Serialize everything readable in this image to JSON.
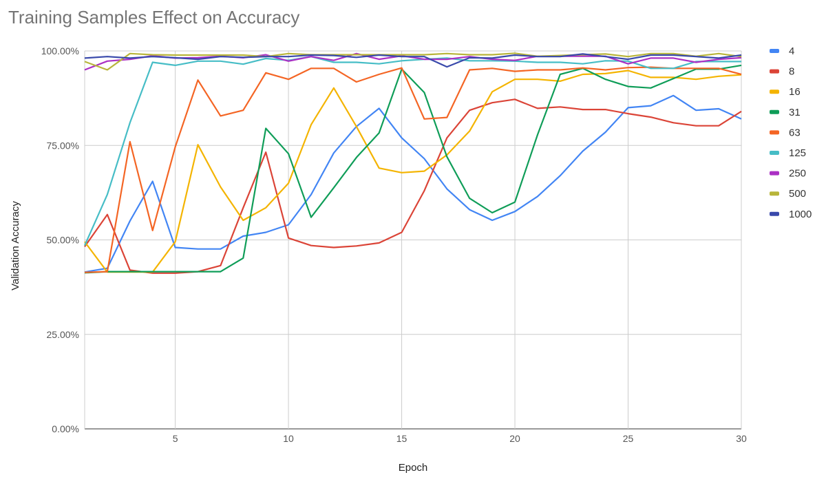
{
  "chart_data": {
    "type": "line",
    "title": "Training Samples Effect on Accuracy",
    "xlabel": "Epoch",
    "ylabel": "Validation Accuracy",
    "xlim": [
      1,
      30
    ],
    "ylim": [
      0,
      100
    ],
    "x_ticks": [
      "5",
      "10",
      "15",
      "20",
      "25",
      "30"
    ],
    "y_ticks": [
      "0.00%",
      "25.00%",
      "50.00%",
      "75.00%",
      "100.00%"
    ],
    "grid": true,
    "legend_position": "right",
    "x": [
      1,
      2,
      3,
      4,
      5,
      6,
      7,
      8,
      9,
      10,
      11,
      12,
      13,
      14,
      15,
      16,
      17,
      18,
      19,
      20,
      21,
      22,
      23,
      24,
      25,
      26,
      27,
      28,
      29,
      30
    ],
    "series": [
      {
        "name": "4",
        "color": "#4285F4",
        "values": [
          41.5,
          42.5,
          55,
          65.5,
          48,
          47.6,
          47.6,
          51,
          52,
          54,
          62,
          73,
          80,
          84.8,
          77,
          71.5,
          63.5,
          58,
          55.2,
          57.5,
          61.5,
          67,
          73.5,
          78.5,
          85,
          85.5,
          88.2,
          84.3,
          84.7,
          82
        ]
      },
      {
        "name": "8",
        "color": "#DB4437",
        "values": [
          48.2,
          56.7,
          42,
          41.2,
          41.2,
          41.6,
          43.2,
          58.5,
          73.2,
          50.5,
          48.5,
          48,
          48.4,
          49.2,
          52,
          63,
          77,
          84.3,
          86.3,
          87.2,
          84.8,
          85.2,
          84.5,
          84.5,
          83.4,
          82.5,
          81,
          80.2,
          80.2,
          84
        ]
      },
      {
        "name": "16",
        "color": "#F4B400",
        "values": [
          49.5,
          41.5,
          41.5,
          41.5,
          49.5,
          75.2,
          64,
          55.2,
          58.5,
          65,
          80.5,
          90.2,
          80,
          69,
          67.8,
          68.2,
          72.5,
          78.8,
          89.2,
          92.5,
          92.5,
          92,
          93.8,
          94,
          94.8,
          93,
          93,
          92.5,
          93.3,
          93.7
        ]
      },
      {
        "name": "31",
        "color": "#0F9D58",
        "values": [
          41.3,
          41.6,
          41.6,
          41.6,
          41.6,
          41.6,
          41.6,
          45.2,
          79.5,
          72.8,
          56,
          63.8,
          71.8,
          78.3,
          95.2,
          89,
          72,
          61,
          57.2,
          60,
          77.8,
          93.8,
          95.4,
          92.5,
          90.6,
          90.2,
          92.7,
          95.2,
          95.2,
          96.2
        ]
      },
      {
        "name": "63",
        "color": "#F46524",
        "values": [
          41.4,
          41.6,
          76,
          52.5,
          74.6,
          92.3,
          82.8,
          84.3,
          94.2,
          92.5,
          95.4,
          95.4,
          91.8,
          93.8,
          95.5,
          82,
          82.4,
          95,
          95.4,
          94.6,
          95,
          95,
          95.5,
          95,
          95.6,
          95.7,
          95.4,
          95.4,
          95.4,
          93.8
        ]
      },
      {
        "name": "125",
        "color": "#46BDC6",
        "values": [
          48.5,
          62,
          81,
          97,
          96.2,
          97.3,
          97.3,
          96.5,
          98,
          97.5,
          98.5,
          97,
          97,
          96.6,
          97.4,
          97.8,
          98.1,
          97.4,
          97.4,
          97.3,
          97,
          97,
          96.6,
          97.4,
          97.3,
          95.4,
          95.4,
          97.2,
          97.2,
          97.2
        ]
      },
      {
        "name": "250",
        "color": "#AB30C4",
        "values": [
          95,
          97.3,
          97.8,
          98.7,
          98.1,
          98.2,
          98.6,
          98.2,
          99,
          97.3,
          98.5,
          97.5,
          99.3,
          97.8,
          98.7,
          97.8,
          97.8,
          98.5,
          97.8,
          97.5,
          98.6,
          98.6,
          98.6,
          98.6,
          96.6,
          98.1,
          98.1,
          97,
          97.8,
          98.2
        ]
      },
      {
        "name": "500",
        "color": "#B8B53A",
        "values": [
          97.2,
          95,
          99.3,
          99,
          98.9,
          98.9,
          98.9,
          98.9,
          98.5,
          99.3,
          99,
          99,
          99,
          99,
          99,
          99,
          99.3,
          99,
          99,
          99.4,
          98.6,
          98.8,
          99,
          99.2,
          98.5,
          99.3,
          99.3,
          98.6,
          99.3,
          98.5
        ]
      },
      {
        "name": "1000",
        "color": "#3949AB",
        "values": [
          98.1,
          98.5,
          98.1,
          98.5,
          98.2,
          97.8,
          98.5,
          98.3,
          98.5,
          98.5,
          98.9,
          98.8,
          98.3,
          98.9,
          98.5,
          98.5,
          95.8,
          98.2,
          98.1,
          98.9,
          98.5,
          98.5,
          99.2,
          98.5,
          97.8,
          98.9,
          98.9,
          98.5,
          98.1,
          98.9
        ]
      }
    ]
  }
}
